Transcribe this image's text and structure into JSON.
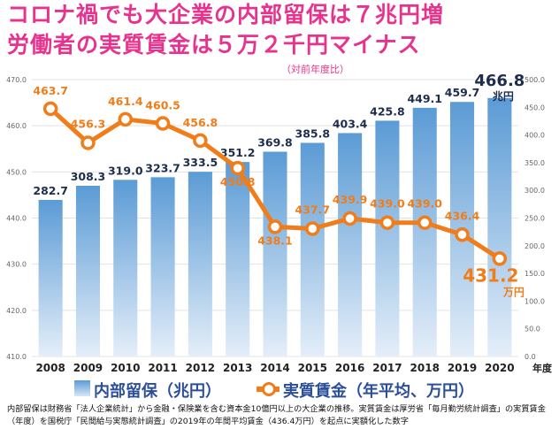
{
  "title_line1": "コロナ禍でも大企業の内部留保は７兆円増",
  "title_line2": "労働者の実質賃金は５万２千円マイナス",
  "subtitle": "（対前年度比）",
  "legend": {
    "bar_label": "内部留保（兆円）",
    "line_label": "実質賃金（年平均、万円）"
  },
  "footnote": "内部留保は財務省「法人企業統計」から金融・保険業を含む資本金10億円以上の大企業の推移。実質賃金は厚労省「毎月勤労統計調査」の実質賃金（年度）を国税庁「民間給与実態統計調査」の2019年の年間平均賃金（436.4万円）を起点に実額化した数字",
  "units": {
    "bar_unit": "兆円",
    "line_unit": "万円",
    "x_unit": "年度"
  },
  "colors": {
    "bar": "#5b9bd5",
    "line": "#f07d1a",
    "title": "#e8338e",
    "label_dark": "#1f2d4d"
  },
  "chart_data": {
    "type": "bar",
    "categories": [
      "2008",
      "2009",
      "2010",
      "2011",
      "2012",
      "2013",
      "2014",
      "2015",
      "2016",
      "2017",
      "2018",
      "2019",
      "2020"
    ],
    "series": [
      {
        "name": "内部留保（兆円）",
        "type": "bar",
        "axis": "right",
        "values": [
          282.7,
          308.3,
          319.0,
          323.7,
          333.5,
          351.2,
          369.8,
          385.8,
          403.4,
          425.8,
          449.1,
          459.7,
          466.8
        ]
      },
      {
        "name": "実質賃金（年平均、万円）",
        "type": "line",
        "axis": "left",
        "values": [
          463.7,
          456.3,
          461.4,
          460.5,
          456.8,
          450.8,
          438.1,
          437.7,
          439.9,
          439.0,
          439.0,
          436.4,
          431.2
        ]
      }
    ],
    "bar_labels": [
      "282.7",
      "308.3",
      "319.0",
      "323.7",
      "333.5",
      "351.2",
      "369.8",
      "385.8",
      "403.4",
      "425.8",
      "449.1",
      "459.7",
      "466.8"
    ],
    "line_labels": [
      "463.7",
      "456.3",
      "461.4",
      "460.5",
      "456.8",
      "450.8",
      "438.1",
      "437.7",
      "439.9",
      "439.0",
      "439.0",
      "436.4",
      "431.2"
    ],
    "left_axis": {
      "ylim": [
        410,
        470
      ],
      "ticks": [
        "410.0",
        "420.0",
        "430.0",
        "440.0",
        "450.0",
        "460.0",
        "470.0"
      ],
      "tick_values": [
        410,
        420,
        430,
        440,
        450,
        460,
        470
      ]
    },
    "right_axis": {
      "ylim": [
        0,
        500
      ],
      "ticks": [
        "0.0",
        "50.0",
        "100.0",
        "150.0",
        "200.0",
        "250.0",
        "300.0",
        "350.0",
        "400.0",
        "450.0",
        "500.0"
      ],
      "tick_values": [
        0,
        50,
        100,
        150,
        200,
        250,
        300,
        350,
        400,
        450,
        500
      ]
    },
    "grid": true
  }
}
